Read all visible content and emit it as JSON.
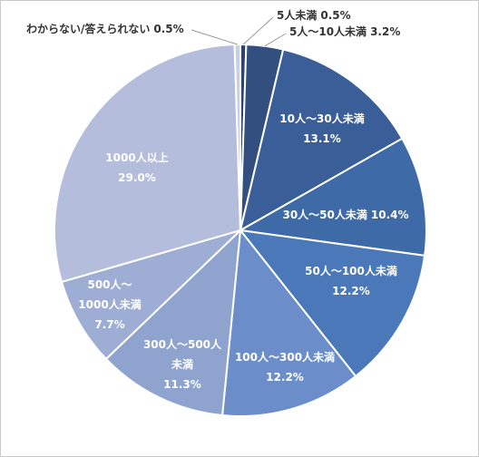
{
  "chart_data": {
    "type": "pie",
    "categories": [
      "5人未満",
      "5人～10人未満",
      "10人～30人未満",
      "30人～50人未満",
      "50人～100人未満",
      "100人～300人未満",
      "300人～500人未満",
      "500人～1000人未満",
      "1000人以上",
      "わからない/答えられない"
    ],
    "values": [
      0.5,
      3.2,
      13.1,
      10.4,
      12.2,
      12.2,
      11.3,
      7.7,
      29.0,
      0.5
    ],
    "value_labels": [
      "0.5%",
      "3.2%",
      "13.1%",
      "10.4%",
      "12.2%",
      "12.2%",
      "11.3%",
      "7.7%",
      "29.0%",
      "0.5%"
    ],
    "colors": [
      "#2d4470",
      "#334f80",
      "#3a5f98",
      "#3f6aa8",
      "#4a78b9",
      "#6b8ecb",
      "#8fa3cf",
      "#9eadd4",
      "#b4bedc",
      "#c8cfe6"
    ]
  }
}
